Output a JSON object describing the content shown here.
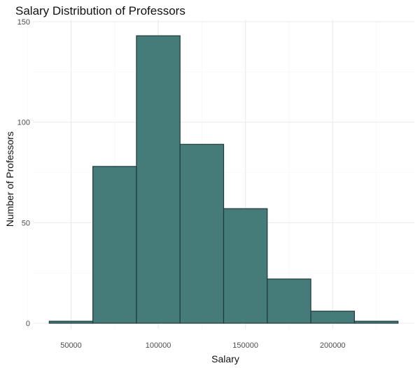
{
  "chart_data": {
    "type": "bar",
    "title": "Salary Distribution of Professors",
    "xlabel": "Salary",
    "ylabel": "Number of Professors",
    "bins": [
      {
        "start": 37500,
        "end": 62500,
        "count": 1
      },
      {
        "start": 62500,
        "end": 87500,
        "count": 78
      },
      {
        "start": 87500,
        "end": 112500,
        "count": 143
      },
      {
        "start": 112500,
        "end": 137500,
        "count": 89
      },
      {
        "start": 137500,
        "end": 162500,
        "count": 57
      },
      {
        "start": 162500,
        "end": 187500,
        "count": 22
      },
      {
        "start": 187500,
        "end": 212500,
        "count": 6
      },
      {
        "start": 212500,
        "end": 237500,
        "count": 1
      }
    ],
    "xticks": [
      50000,
      100000,
      150000,
      200000
    ],
    "xtick_labels": [
      "50000",
      "100000",
      "150000",
      "200000"
    ],
    "yticks": [
      0,
      50,
      100,
      150
    ],
    "ytick_labels": [
      "0",
      "50",
      "100",
      "150"
    ],
    "xlim": [
      28125,
      246875
    ],
    "ylim": [
      0,
      150
    ],
    "grid": true,
    "bar_fill": "#457b79",
    "bar_stroke": "#1f3a3b",
    "grid_color": "#ebebeb"
  }
}
